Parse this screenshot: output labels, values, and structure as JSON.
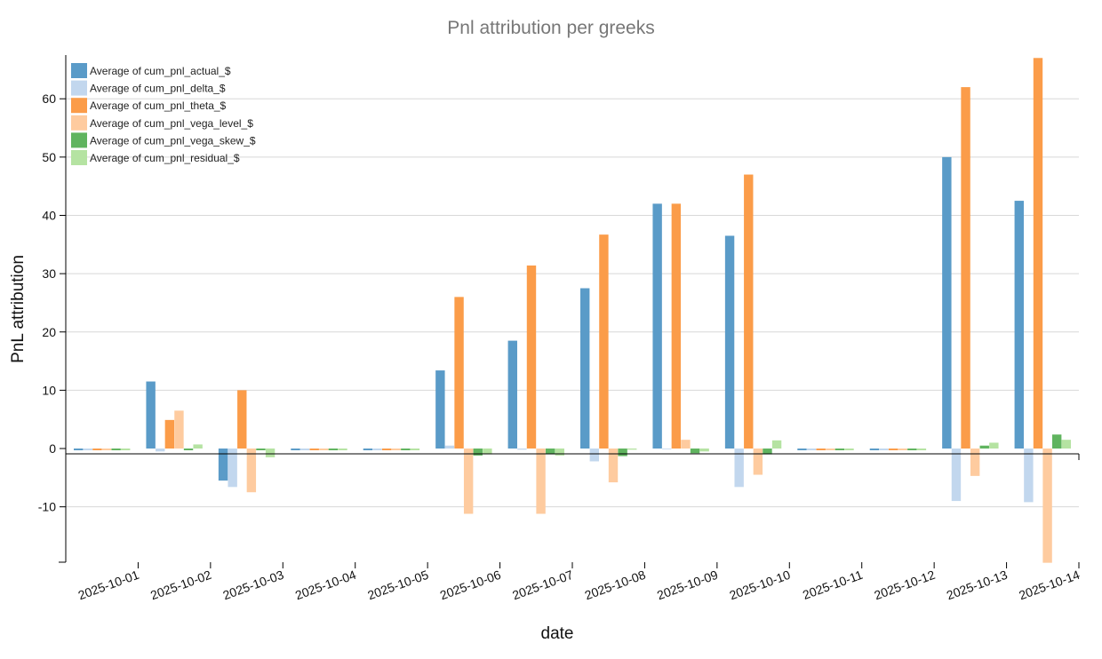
{
  "chart_data": {
    "type": "bar",
    "title": "Pnl attribution per greeks",
    "xlabel": "date",
    "ylabel": "PnL attribution",
    "ylim": [
      -19.5,
      67.5
    ],
    "yticks": [
      -10,
      0,
      10,
      20,
      30,
      40,
      50,
      60
    ],
    "grid": true,
    "legend_position": "top-left",
    "categories": [
      "2025-10-01",
      "2025-10-02",
      "2025-10-03",
      "2025-10-04",
      "2025-10-05",
      "2025-10-06",
      "2025-10-07",
      "2025-10-08",
      "2025-10-09",
      "2025-10-10",
      "2025-10-11",
      "2025-10-12",
      "2025-10-13",
      "2025-10-14"
    ],
    "series": [
      {
        "name": "Average of cum_pnl_actual_$",
        "color": "#5a9bc8",
        "values": [
          -0.3,
          11.5,
          -5.5,
          -0.3,
          -0.3,
          13.4,
          18.5,
          27.5,
          42.0,
          36.5,
          -0.3,
          -0.3,
          50.0,
          42.5
        ]
      },
      {
        "name": "Average of cum_pnl_delta_$",
        "color": "#c2d7ee",
        "values": [
          -0.3,
          -0.5,
          -6.6,
          -0.3,
          -0.3,
          0.5,
          -0.2,
          -2.2,
          0.0,
          -6.6,
          -0.3,
          -0.3,
          -9.0,
          -9.2
        ]
      },
      {
        "name": "Average of cum_pnl_theta_$",
        "color": "#fb9c49",
        "values": [
          -0.3,
          4.9,
          10.0,
          -0.3,
          -0.3,
          26.0,
          31.4,
          36.7,
          42.0,
          47.0,
          -0.3,
          -0.3,
          62.0,
          67.0
        ]
      },
      {
        "name": "Average of cum_pnl_vega_level_$",
        "color": "#fecb9f",
        "values": [
          -0.3,
          6.5,
          -7.5,
          -0.3,
          -0.3,
          -11.2,
          -11.2,
          -5.8,
          1.5,
          -4.5,
          -0.3,
          -0.3,
          -4.7,
          -19.6
        ]
      },
      {
        "name": "Average of cum_pnl_vega_skew_$",
        "color": "#60b45f",
        "values": [
          -0.3,
          -0.3,
          -0.3,
          -0.3,
          -0.3,
          -1.2,
          -1.0,
          -1.3,
          -0.8,
          -1.0,
          -0.3,
          -0.3,
          0.5,
          2.4
        ]
      },
      {
        "name": "Average of cum_pnl_residual_$",
        "color": "#b5e3a2",
        "values": [
          -0.3,
          0.7,
          -1.5,
          -0.3,
          -0.3,
          -1.0,
          -1.2,
          -0.2,
          -0.5,
          1.4,
          -0.3,
          -0.3,
          1.0,
          1.5
        ]
      }
    ]
  }
}
